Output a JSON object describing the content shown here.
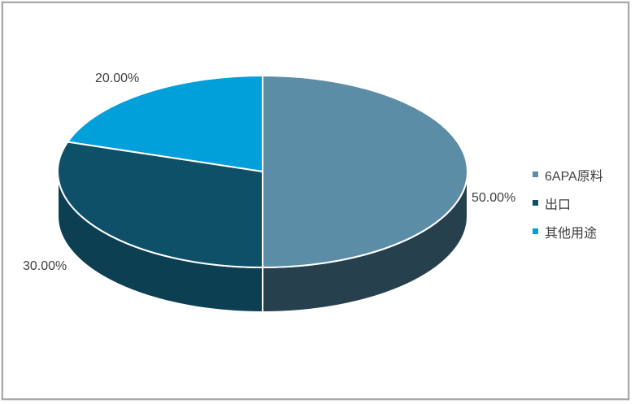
{
  "frame": {
    "background": "#FFFFFF",
    "border_color": "#A9A9A9"
  },
  "chart_data": {
    "type": "pie",
    "style": "3d",
    "title": "",
    "start_angle_deg": 0,
    "direction": "clockwise",
    "legend_position": "right",
    "categories": [
      "6APA原料",
      "出口",
      "其他用途"
    ],
    "values": [
      50,
      30,
      20
    ],
    "slices": [
      {
        "name": "6APA原料",
        "value": 50,
        "label": "50.00%",
        "color": "#5C8DA6",
        "side_color": "#27404D"
      },
      {
        "name": "出口",
        "value": 30,
        "label": "30.00%",
        "color": "#0E5068",
        "side_color": "#0D3F53"
      },
      {
        "name": "其他用途",
        "value": 20,
        "label": "20.00%",
        "color": "#02A0DA",
        "side_color": "#0A82B0"
      }
    ]
  }
}
